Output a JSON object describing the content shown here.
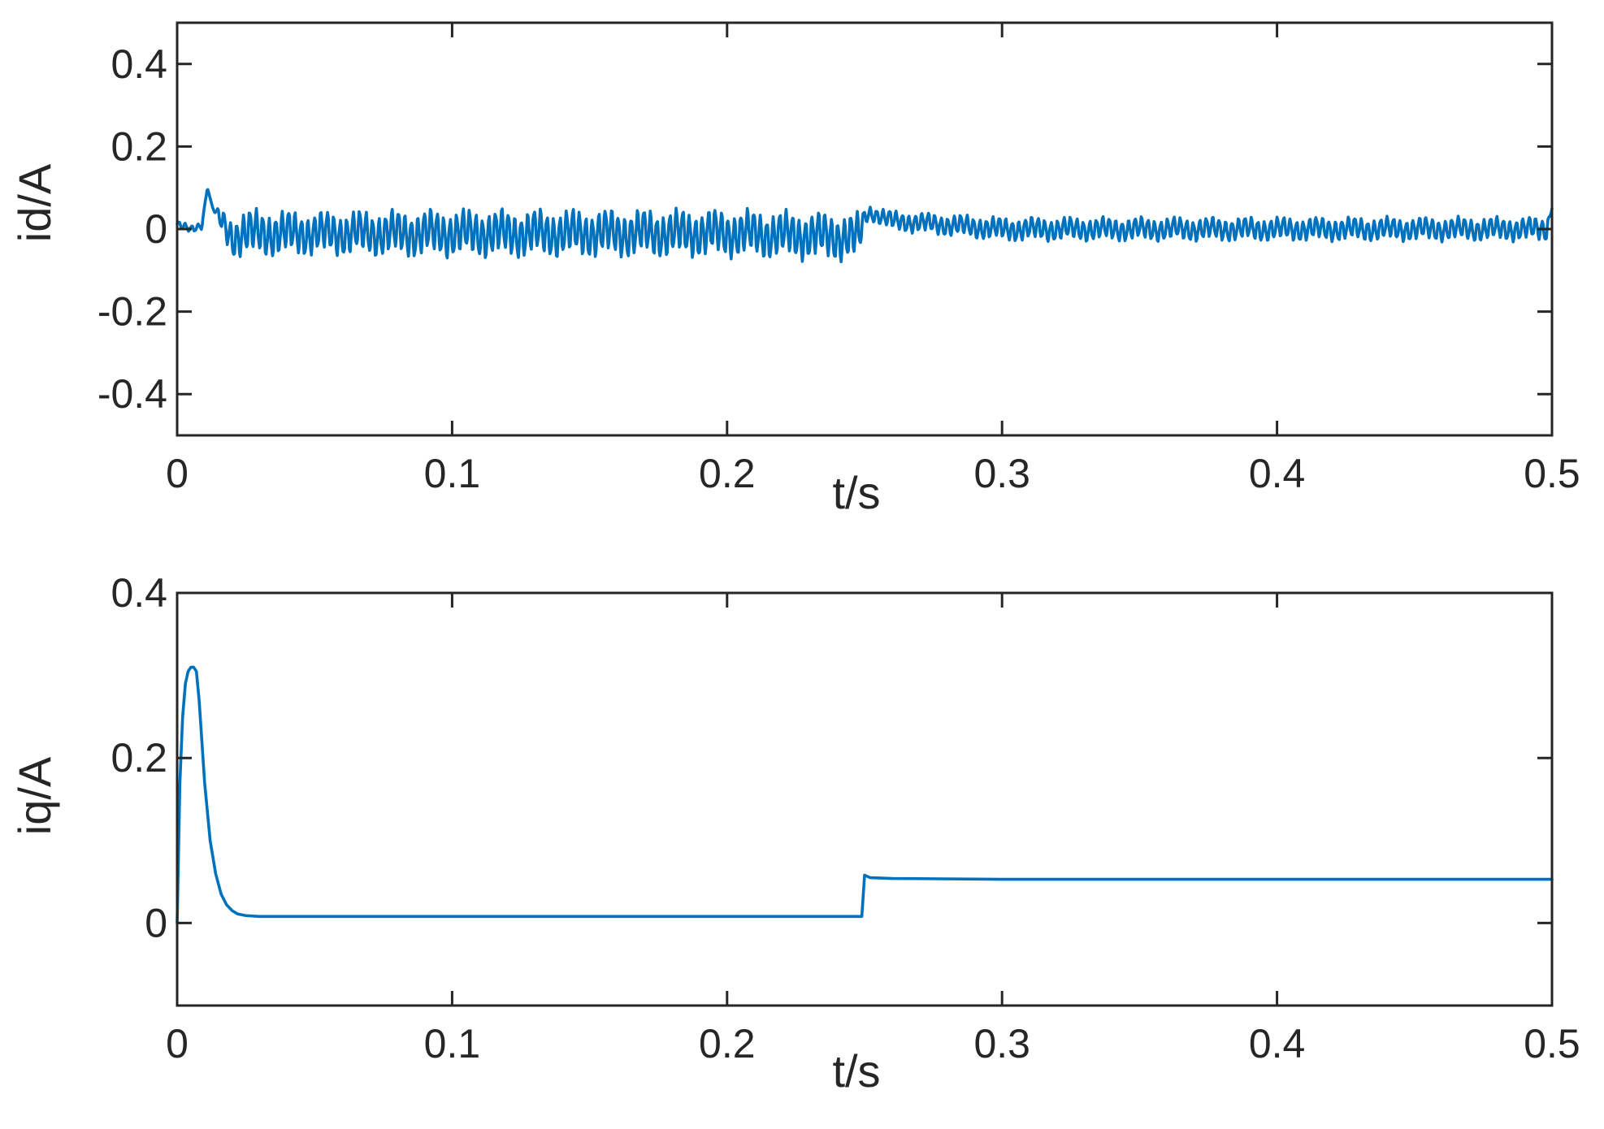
{
  "chart_data": [
    {
      "type": "line",
      "xlabel": "t/s",
      "ylabel": "id/A",
      "xlim": [
        0,
        0.5
      ],
      "ylim": [
        -0.5,
        0.5
      ],
      "xticks": [
        "0",
        "0.1",
        "0.2",
        "0.3",
        "0.4",
        "0.5"
      ],
      "yticks": [
        "-0.4",
        "-0.2",
        "0",
        "0.2",
        "0.4"
      ],
      "grid": false,
      "series": [
        {
          "color": "#0072BD",
          "x": [
            0,
            0.005,
            0.009,
            0.011,
            0.013,
            0.016,
            0.02,
            0.025,
            0.05,
            0.1,
            0.15,
            0.2,
            0.248,
            0.25,
            0.252,
            0.26,
            0.3,
            0.35,
            0.4,
            0.45,
            0.498,
            0.5
          ],
          "y": [
            0.01,
            0.0,
            0.01,
            0.1,
            0.05,
            0.02,
            -0.02,
            -0.01,
            -0.01,
            -0.01,
            -0.01,
            -0.01,
            -0.02,
            0.03,
            0.04,
            0.02,
            0.0,
            0.0,
            0.0,
            0.0,
            0.0,
            0.05
          ],
          "ripple_amplitude": [
            0.01,
            0.01,
            0.01,
            0.0,
            0.0,
            0.03,
            0.05,
            0.06,
            0.055,
            0.06,
            0.06,
            0.06,
            0.06,
            0.02,
            0.02,
            0.025,
            0.03,
            0.03,
            0.03,
            0.03,
            0.03,
            0.0
          ]
        }
      ]
    },
    {
      "type": "line",
      "xlabel": "t/s",
      "ylabel": "iq/A",
      "xlim": [
        0,
        0.5
      ],
      "ylim": [
        -0.1,
        0.4
      ],
      "xticks": [
        "0",
        "0.1",
        "0.2",
        "0.3",
        "0.4",
        "0.5"
      ],
      "yticks": [
        "0",
        "0.2",
        "0.4"
      ],
      "grid": false,
      "series": [
        {
          "color": "#0072BD",
          "x": [
            0,
            0.001,
            0.002,
            0.003,
            0.004,
            0.005,
            0.006,
            0.007,
            0.008,
            0.009,
            0.01,
            0.012,
            0.014,
            0.016,
            0.018,
            0.02,
            0.022,
            0.025,
            0.03,
            0.05,
            0.1,
            0.15,
            0.2,
            0.249,
            0.25,
            0.252,
            0.26,
            0.3,
            0.35,
            0.4,
            0.45,
            0.5
          ],
          "y": [
            0.0,
            0.17,
            0.25,
            0.29,
            0.305,
            0.31,
            0.31,
            0.305,
            0.27,
            0.22,
            0.17,
            0.1,
            0.06,
            0.035,
            0.022,
            0.015,
            0.011,
            0.009,
            0.008,
            0.008,
            0.008,
            0.008,
            0.008,
            0.008,
            0.058,
            0.055,
            0.054,
            0.053,
            0.053,
            0.053,
            0.053,
            0.053
          ]
        }
      ]
    }
  ]
}
